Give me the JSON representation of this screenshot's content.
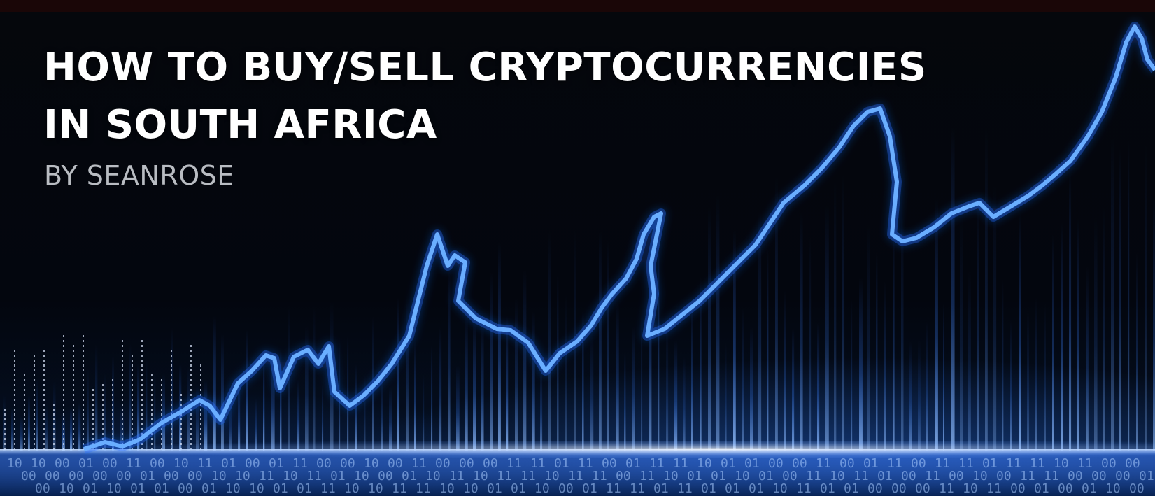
{
  "banner": {
    "title_line1": "HOW TO BUY/SELL CRYPTOCURRENCIES",
    "title_line2": "IN SOUTH AFRICA",
    "byline": "BY SEANROSE"
  },
  "colors": {
    "title": "#ffffff",
    "byline": "#b9bcc2",
    "line": "#5aa2ff",
    "glow": "#1f6dff",
    "background": "#03060e"
  },
  "decor": {
    "trend_line_icon": "rising-price-line-icon",
    "bars_icon": "data-bars-background-icon",
    "floor_icon": "binary-digits-floor-icon"
  }
}
